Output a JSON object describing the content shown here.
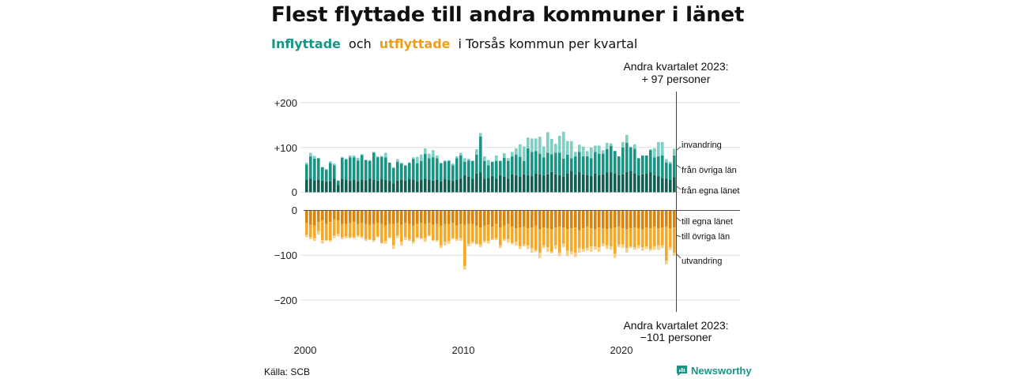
{
  "title": "Flest flyttade till andra kommuner i länet",
  "subtitle": {
    "part1": "Inflyttade",
    "part2": "och",
    "part3": "utflyttade",
    "part4": "i Torsås kommun per kvartal"
  },
  "source": "Källa: SCB",
  "brand": "Newsworthy",
  "colors": {
    "in_egna": "#135e52",
    "in_ovriga": "#1a9485",
    "in_invandring": "#7fcfc4",
    "out_egna": "#d9850d",
    "out_ovriga": "#f4a928",
    "out_utvandring": "#f7cf85",
    "brand": "#1a9485"
  },
  "annotations": {
    "top_line1": "Andra kvartalet 2023:",
    "top_line2": "+ 97 personer",
    "bottom_line1": "Andra kvartalet 2023:",
    "bottom_line2": "−101 personer"
  },
  "chart_data": {
    "type": "bar",
    "stacked": true,
    "x_start": "2000 Q1",
    "x_end": "2023 Q2",
    "x_tick_labels": [
      "2000",
      "2010",
      "2020"
    ],
    "y_tick_labels": [
      "+200",
      "+100",
      "0",
      "0",
      "−100",
      "−200"
    ],
    "ylim_in": [
      0,
      220
    ],
    "ylim_out": [
      -220,
      0
    ],
    "legend_in": [
      "invandring",
      "från övriga län",
      "från egna länet"
    ],
    "legend_out": [
      "till egna länet",
      "till övriga län",
      "utvandring"
    ],
    "inflyttade": {
      "fran_egna_lanet": [
        28,
        30,
        27,
        28,
        26,
        24,
        25,
        30,
        16,
        29,
        28,
        26,
        28,
        25,
        28,
        27,
        30,
        28,
        26,
        29,
        28,
        26,
        20,
        26,
        28,
        26,
        29,
        28,
        25,
        28,
        30,
        28,
        26,
        28,
        25,
        29,
        28,
        26,
        28,
        30,
        38,
        35,
        30,
        42,
        44,
        30,
        32,
        36,
        30,
        38,
        35,
        30,
        40,
        38,
        35,
        40,
        38,
        36,
        42,
        40,
        38,
        40,
        45,
        40,
        38,
        35,
        42,
        48,
        40,
        45,
        40,
        38,
        36,
        42,
        38,
        40,
        44,
        45,
        42,
        38,
        40,
        45,
        48,
        42,
        38,
        40,
        42,
        44,
        38,
        36,
        32,
        30,
        28,
        34
      ],
      "fran_ovriga_lan": [
        34,
        50,
        48,
        48,
        30,
        26,
        40,
        30,
        10,
        48,
        45,
        52,
        50,
        46,
        55,
        45,
        40,
        60,
        52,
        50,
        50,
        40,
        34,
        42,
        36,
        34,
        36,
        46,
        40,
        42,
        56,
        48,
        52,
        48,
        40,
        40,
        42,
        34,
        48,
        52,
        30,
        36,
        40,
        42,
        80,
        40,
        28,
        32,
        40,
        32,
        42,
        40,
        40,
        46,
        44,
        30,
        60,
        54,
        50,
        46,
        40,
        48,
        40,
        48,
        50,
        40,
        42,
        28,
        40,
        45,
        40,
        42,
        40,
        48,
        48,
        46,
        52,
        58,
        50,
        42,
        60,
        65,
        52,
        55,
        38,
        42,
        40,
        50,
        40,
        44,
        50,
        36,
        36,
        48
      ],
      "invandring": [
        4,
        8,
        6,
        0,
        0,
        2,
        4,
        4,
        0,
        2,
        2,
        4,
        4,
        6,
        2,
        0,
        2,
        2,
        2,
        2,
        10,
        0,
        2,
        6,
        2,
        0,
        2,
        4,
        14,
        14,
        12,
        10,
        16,
        6,
        0,
        2,
        2,
        4,
        4,
        6,
        8,
        4,
        0,
        12,
        8,
        10,
        12,
        0,
        12,
        0,
        10,
        6,
        10,
        14,
        28,
        32,
        24,
        30,
        28,
        38,
        24,
        46,
        34,
        20,
        38,
        60,
        30,
        38,
        10,
        16,
        22,
        12,
        24,
        14,
        18,
        8,
        14,
        6,
        0,
        0,
        12,
        18,
        2,
        10,
        0,
        0,
        0,
        2,
        20,
        32,
        30,
        8,
        4,
        15
      ]
    },
    "utflyttade": {
      "till_egna_lanet": [
        28,
        32,
        34,
        26,
        22,
        30,
        26,
        20,
        22,
        30,
        30,
        28,
        26,
        30,
        28,
        30,
        32,
        30,
        28,
        30,
        34,
        30,
        30,
        28,
        32,
        28,
        30,
        34,
        30,
        28,
        30,
        28,
        32,
        30,
        34,
        30,
        30,
        28,
        34,
        30,
        32,
        30,
        30,
        34,
        38,
        34,
        32,
        36,
        30,
        38,
        34,
        30,
        36,
        40,
        38,
        36,
        40,
        38,
        34,
        42,
        38,
        40,
        42,
        38,
        36,
        38,
        42,
        40,
        38,
        44,
        40,
        36,
        40,
        42,
        38,
        40,
        42,
        40,
        38,
        36,
        40,
        42,
        40,
        38,
        40,
        42,
        38,
        40,
        36,
        40,
        38,
        36,
        40,
        38
      ],
      "till_ovriga_lan": [
        26,
        28,
        28,
        20,
        44,
        36,
        40,
        36,
        30,
        30,
        28,
        32,
        34,
        26,
        30,
        34,
        32,
        36,
        30,
        42,
        34,
        30,
        48,
        28,
        38,
        32,
        34,
        36,
        30,
        34,
        32,
        28,
        34,
        36,
        44,
        40,
        38,
        34,
        30,
        32,
        92,
        44,
        40,
        40,
        38,
        34,
        36,
        28,
        32,
        40,
        30,
        34,
        36,
        30,
        42,
        40,
        38,
        46,
        54,
        52,
        40,
        42,
        50,
        40,
        58,
        36,
        48,
        52,
        56,
        40,
        46,
        48,
        40,
        38,
        44,
        34,
        36,
        40,
        58,
        40,
        36,
        42,
        40,
        44,
        38,
        40,
        42,
        46,
        44,
        38,
        40,
        76,
        42,
        56
      ],
      "utvandring": [
        6,
        4,
        6,
        8,
        8,
        2,
        4,
        6,
        6,
        4,
        4,
        2,
        2,
        4,
        4,
        4,
        2,
        4,
        2,
        2,
        6,
        2,
        8,
        6,
        8,
        6,
        4,
        4,
        2,
        2,
        8,
        2,
        2,
        4,
        6,
        8,
        6,
        2,
        4,
        6,
        8,
        6,
        4,
        2,
        6,
        4,
        6,
        2,
        4,
        6,
        4,
        8,
        4,
        8,
        6,
        4,
        8,
        10,
        4,
        12,
        6,
        10,
        4,
        8,
        8,
        8,
        12,
        6,
        10,
        10,
        6,
        6,
        12,
        8,
        10,
        6,
        8,
        8,
        10,
        6,
        8,
        10,
        4,
        6,
        6,
        8,
        6,
        4,
        8,
        10,
        6,
        8,
        6,
        7
      ]
    }
  }
}
